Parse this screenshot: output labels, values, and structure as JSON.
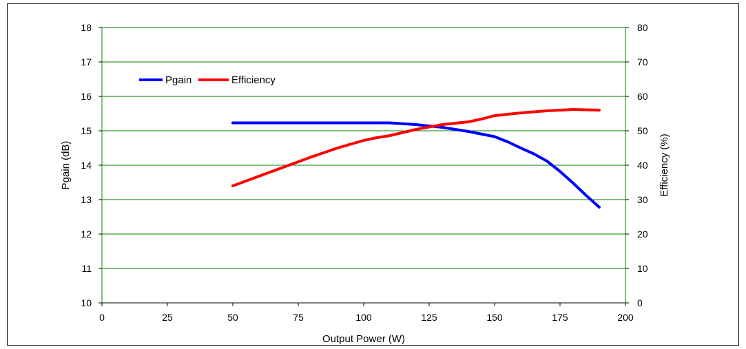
{
  "chart_data": {
    "type": "line",
    "title": "",
    "xlabel": "Output Power (W)",
    "ylabel": "Pgain (dB)",
    "y2label": "Efficiency (%)",
    "xlim": [
      0,
      200
    ],
    "ylim": [
      10,
      18
    ],
    "y2lim": [
      0,
      80
    ],
    "x_ticks": [
      0,
      25,
      50,
      75,
      100,
      125,
      150,
      175,
      200
    ],
    "y_ticks": [
      10,
      11,
      12,
      13,
      14,
      15,
      16,
      17,
      18
    ],
    "y2_ticks": [
      0,
      10,
      20,
      30,
      40,
      50,
      60,
      70,
      80
    ],
    "grid": "horizontal",
    "grid_color": "#008000",
    "legend_position": "top-left",
    "series": [
      {
        "name": "Pgain",
        "axis": "left",
        "color": "#0000ff",
        "x": [
          50,
          75,
          100,
          110,
          120,
          130,
          140,
          150,
          155,
          160,
          165,
          170,
          175,
          180,
          185,
          190
        ],
        "y": [
          15.23,
          15.23,
          15.23,
          15.23,
          15.18,
          15.1,
          14.98,
          14.83,
          14.68,
          14.5,
          14.33,
          14.12,
          13.82,
          13.48,
          13.12,
          12.78
        ]
      },
      {
        "name": "Efficiency",
        "axis": "right",
        "color": "#ff0000",
        "x": [
          50,
          60,
          70,
          80,
          90,
          100,
          105,
          110,
          120,
          130,
          140,
          145,
          150,
          160,
          170,
          180,
          190
        ],
        "y": [
          34,
          36.8,
          39.6,
          42.4,
          45,
          47.2,
          48,
          48.6,
          50.4,
          51.8,
          52.6,
          53.4,
          54.4,
          55.2,
          55.8,
          56.2,
          56
        ]
      }
    ]
  }
}
